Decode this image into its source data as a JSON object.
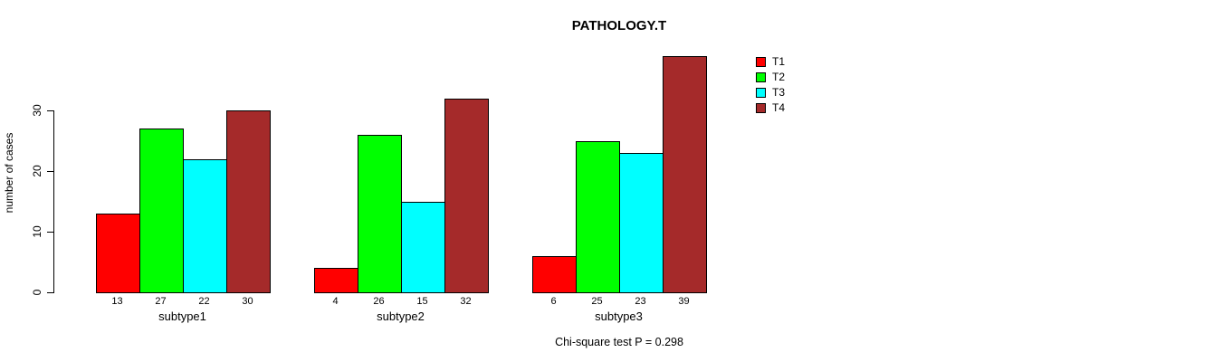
{
  "chart_data": {
    "type": "bar",
    "title": "PATHOLOGY.T",
    "ylabel": "number of cases",
    "xlabel": "",
    "ylim": [
      0,
      30
    ],
    "yticks": [
      0,
      10,
      20,
      30
    ],
    "grid": false,
    "legend_position": "top-right",
    "categories": [
      "subtype1",
      "subtype2",
      "subtype3"
    ],
    "series": [
      {
        "name": "T1",
        "color": "#FF0000",
        "values": [
          13,
          4,
          6
        ]
      },
      {
        "name": "T2",
        "color": "#00FF00",
        "values": [
          27,
          26,
          25
        ]
      },
      {
        "name": "T3",
        "color": "#00FFFF",
        "values": [
          22,
          15,
          23
        ]
      },
      {
        "name": "T4",
        "color": "#A52A2A",
        "values": [
          30,
          32,
          39
        ]
      }
    ],
    "bar_value_labels": {
      "subtype1": [
        13,
        27,
        22,
        30
      ],
      "subtype2": [
        4,
        26,
        15,
        32
      ],
      "subtype3": [
        6,
        25,
        23,
        39
      ]
    },
    "note": "Chi-square test P = 0.298"
  }
}
